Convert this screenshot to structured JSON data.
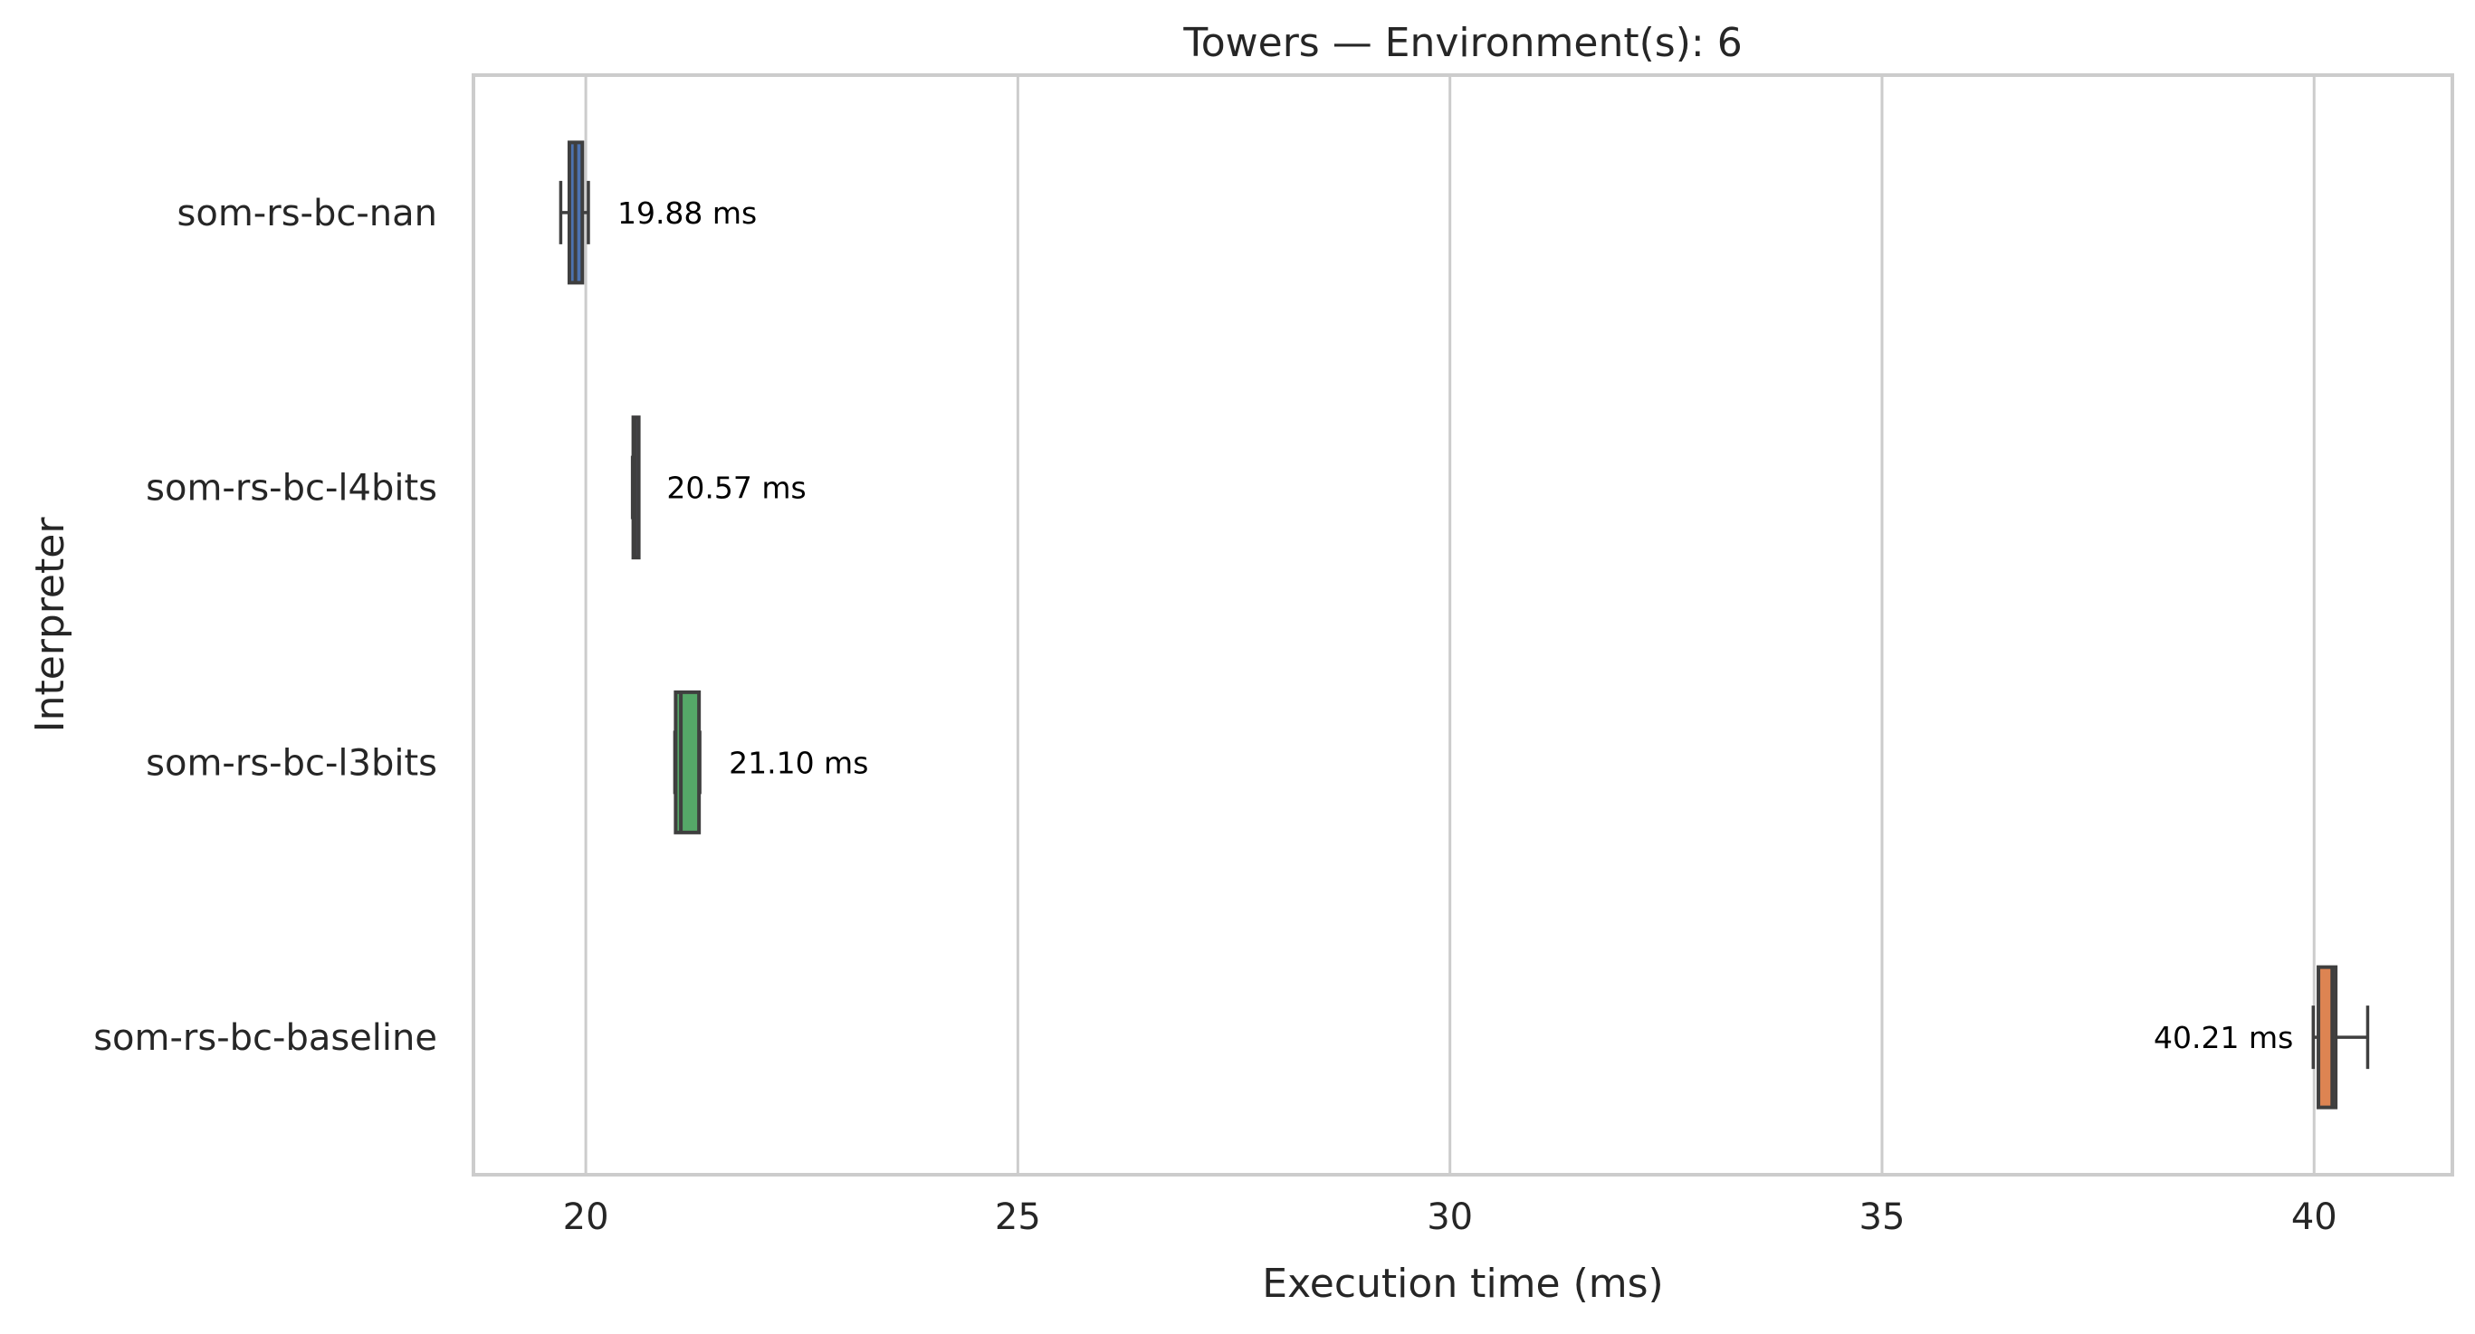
{
  "chart_data": {
    "type": "boxplot",
    "orientation": "horizontal",
    "title": "Towers — Environment(s): 6",
    "xlabel": "Execution time (ms)",
    "ylabel": "Interpreter",
    "xlim": [
      18.7,
      41.6
    ],
    "xticks": [
      20,
      25,
      30,
      35,
      40
    ],
    "xtick_labels": [
      "20",
      "25",
      "30",
      "35",
      "40"
    ],
    "grid": "vertical",
    "categories": [
      "som-rs-bc-nan",
      "som-rs-bc-l4bits",
      "som-rs-bc-l3bits",
      "som-rs-bc-baseline"
    ],
    "series": [
      {
        "category": "som-rs-bc-nan",
        "color": "#4c72b0",
        "whisker_low": 19.71,
        "q1": 19.81,
        "median": 19.88,
        "q3": 19.96,
        "whisker_high": 20.03,
        "label": "19.88 ms",
        "label_side": "right"
      },
      {
        "category": "som-rs-bc-l4bits",
        "color": "#8172b3",
        "whisker_low": 20.54,
        "q1": 20.55,
        "median": 20.57,
        "q3": 20.58,
        "whisker_high": 20.6,
        "label": "20.57 ms",
        "label_side": "right"
      },
      {
        "category": "som-rs-bc-l3bits",
        "color": "#55a868",
        "whisker_low": 21.03,
        "q1": 21.04,
        "median": 21.1,
        "q3": 21.31,
        "whisker_high": 21.32,
        "label": "21.10 ms",
        "label_side": "right"
      },
      {
        "category": "som-rs-bc-baseline",
        "color": "#dd8452",
        "whisker_low": 39.99,
        "q1": 40.05,
        "median": 40.21,
        "q3": 40.25,
        "whisker_high": 40.62,
        "label": "40.21 ms",
        "label_side": "left"
      }
    ]
  }
}
